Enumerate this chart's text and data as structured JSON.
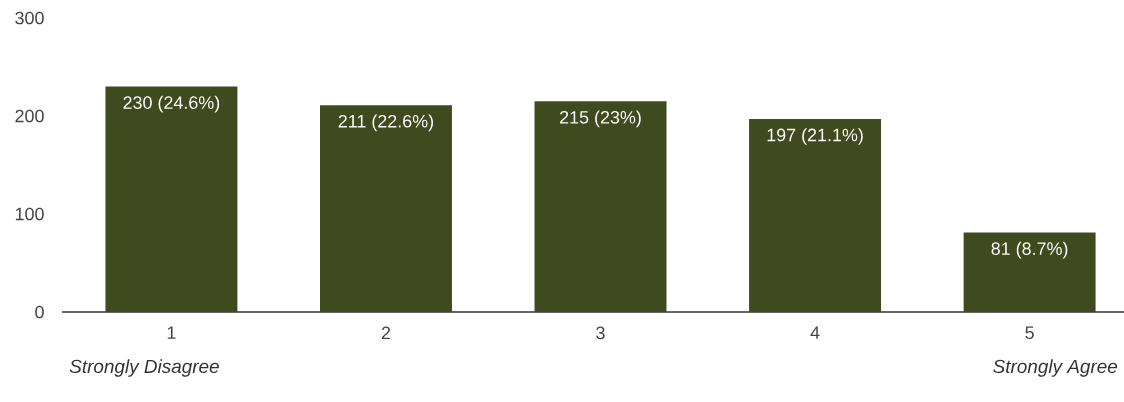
{
  "chart_data": {
    "type": "bar",
    "categories": [
      "1",
      "2",
      "3",
      "4",
      "5"
    ],
    "values": [
      230,
      211,
      215,
      197,
      81
    ],
    "value_labels": [
      "230 (24.6%)",
      "211 (22.6%)",
      "215 (23%)",
      "197 (21.1%)",
      "81 (8.7%)"
    ],
    "color": "#3f4a1e",
    "ylim": [
      0,
      300
    ],
    "yticks": [
      0,
      100,
      200,
      300
    ],
    "annotations": [
      "Strongly Disagree",
      "Strongly Agree"
    ]
  }
}
